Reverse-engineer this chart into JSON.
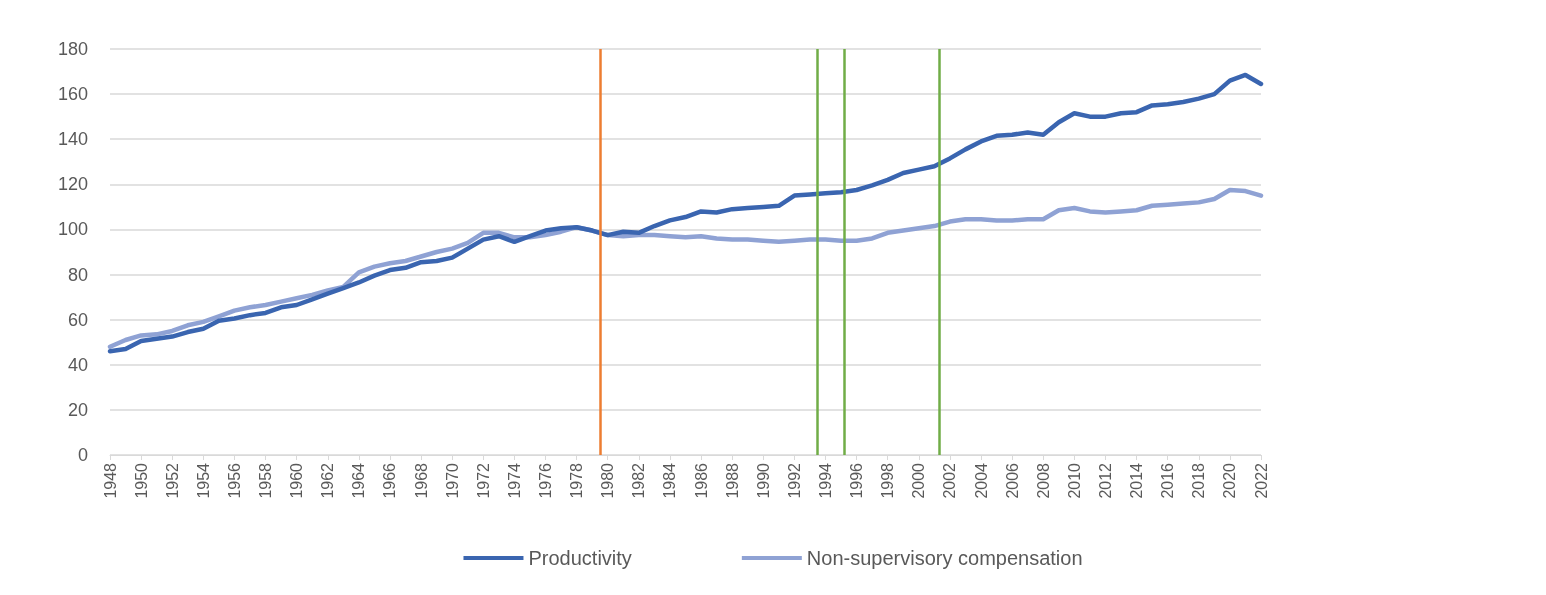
{
  "chart_data": {
    "type": "line",
    "x": [
      1948,
      1949,
      1950,
      1951,
      1952,
      1953,
      1954,
      1955,
      1956,
      1957,
      1958,
      1959,
      1960,
      1961,
      1962,
      1963,
      1964,
      1965,
      1966,
      1967,
      1968,
      1969,
      1970,
      1971,
      1972,
      1973,
      1974,
      1975,
      1976,
      1977,
      1978,
      1979,
      1980,
      1981,
      1982,
      1983,
      1984,
      1985,
      1986,
      1987,
      1988,
      1989,
      1990,
      1991,
      1992,
      1993,
      1994,
      1995,
      1996,
      1997,
      1998,
      1999,
      2000,
      2001,
      2002,
      2003,
      2004,
      2005,
      2006,
      2007,
      2008,
      2009,
      2010,
      2011,
      2012,
      2013,
      2014,
      2015,
      2016,
      2017,
      2018,
      2019,
      2020,
      2021,
      2022
    ],
    "series": [
      {
        "name": "Productivity",
        "color": "#3a65b0",
        "values": [
          46,
          47,
          50.5,
          51.5,
          52.5,
          54.5,
          56,
          59.5,
          60.5,
          62,
          63,
          65.5,
          66.5,
          69,
          71.5,
          74,
          76.5,
          79.5,
          82,
          83,
          85.5,
          86,
          87.5,
          91.5,
          95.5,
          97,
          94.5,
          97,
          99.5,
          100.5,
          101,
          99.5,
          97.5,
          99,
          98.5,
          101.5,
          104,
          105.5,
          108,
          107.5,
          109,
          109.5,
          110,
          110.5,
          115,
          115.5,
          116,
          116.5,
          117.5,
          119.5,
          122,
          125,
          126.5,
          128,
          131.5,
          135.5,
          139,
          141.5,
          142,
          143,
          142,
          147.5,
          151.5,
          150,
          150,
          151.5,
          152,
          155,
          155.5,
          156.5,
          158,
          160,
          166,
          168.5,
          164.5
        ]
      },
      {
        "name": "Non-supervisory compensation",
        "color": "#8fa2d4",
        "values": [
          48,
          51,
          53,
          53.5,
          55,
          57.5,
          59,
          61.5,
          64,
          65.5,
          66.5,
          68,
          69.5,
          71,
          73,
          74.5,
          81,
          83.5,
          85,
          86,
          88,
          90,
          91.5,
          94,
          98.5,
          98.5,
          96.5,
          96.5,
          97.5,
          99,
          101,
          99.5,
          97.5,
          97,
          97.5,
          97.5,
          97,
          96.5,
          97,
          96,
          95.5,
          95.5,
          95,
          94.5,
          95,
          95.5,
          95.5,
          95,
          95,
          96,
          98.5,
          99.5,
          100.5,
          101.5,
          103.5,
          104.5,
          104.5,
          104,
          104,
          104.5,
          104.5,
          108.5,
          109.5,
          108,
          107.5,
          108,
          108.5,
          110.5,
          111,
          111.5,
          112,
          113.5,
          117.5,
          117,
          115
        ]
      }
    ],
    "xlim": [
      1948,
      2022
    ],
    "xticks": [
      1948,
      1950,
      1952,
      1954,
      1956,
      1958,
      1960,
      1962,
      1964,
      1966,
      1968,
      1970,
      1972,
      1974,
      1976,
      1978,
      1980,
      1982,
      1984,
      1986,
      1988,
      1990,
      1992,
      1994,
      1996,
      1998,
      2000,
      2002,
      2004,
      2006,
      2008,
      2010,
      2012,
      2014,
      2016,
      2018,
      2020,
      2022
    ],
    "ylim": [
      0,
      180
    ],
    "yticks": [
      0,
      20,
      40,
      60,
      80,
      100,
      120,
      140,
      160,
      180
    ],
    "ref_lines": [
      {
        "axis": "x",
        "value": 1979.5,
        "color": "#ed7d31"
      },
      {
        "axis": "x",
        "value": 1993.5,
        "color": "#70ad47"
      },
      {
        "axis": "x",
        "value": 1995.2,
        "color": "#70ad47"
      },
      {
        "axis": "x",
        "value": 2001.3,
        "color": "#70ad47"
      }
    ],
    "grid": "y",
    "legend": "bottom",
    "marker": "none",
    "line_style": "solid"
  }
}
